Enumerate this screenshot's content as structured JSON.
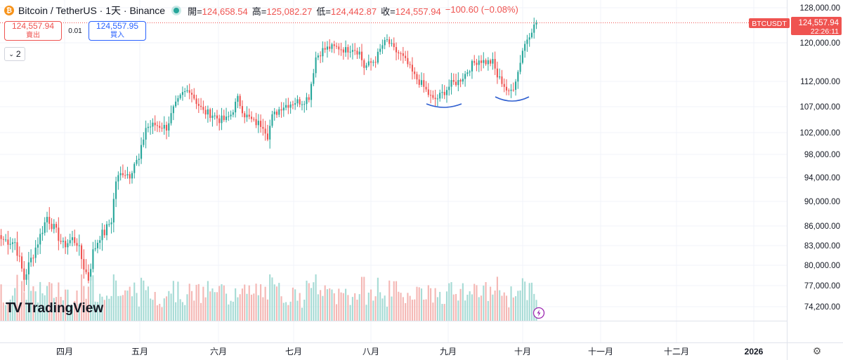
{
  "header": {
    "coin_symbol": "₿",
    "title": "Bitcoin / TetherUS · 1天 · Binance",
    "open_label": "開=",
    "open": "124,658.54",
    "high_label": "高=",
    "high": "125,082.27",
    "low_label": "低=",
    "low": "124,442.87",
    "close_label": "收=",
    "close": "124,557.94",
    "change": "−100.60 (−0.08%)"
  },
  "trade": {
    "sell_price": "124,557.94",
    "sell_label": "賣出",
    "spread": "0.01",
    "buy_price": "124,557.95",
    "buy_label": "買入"
  },
  "toggle_value": "2",
  "logo_text": "TradingView",
  "price_tag": {
    "symbol": "BTCUSDT",
    "price": "124,557.94",
    "countdown": "22:26:11"
  },
  "colors": {
    "up": "#26a69a",
    "down": "#ef5350",
    "vol_up": "#a6dbd5",
    "vol_down": "#f4b7b4",
    "accent_blue": "#2962ff",
    "annotation": "#2f5fd0"
  },
  "chart_data": {
    "type": "candlestick",
    "y_ticks": [
      128000,
      120000,
      112000,
      107000,
      102000,
      98000,
      94000,
      90000,
      86000,
      83000,
      80000,
      77000,
      74200
    ],
    "y_tick_labels": [
      "128,000.00",
      "120,000.00",
      "112,000.00",
      "107,000.00",
      "102,000.00",
      "98,000.00",
      "94,000.00",
      "90,000.00",
      "86,000.00",
      "83,000.00",
      "80,000.00",
      "77,000.00",
      "74,200.00"
    ],
    "x_labels": [
      "四月",
      "五月",
      "六月",
      "七月",
      "八月",
      "九月",
      "十月",
      "十一月",
      "十二月",
      "2026"
    ],
    "last_price": 124557.94,
    "series": [
      {
        "day": 0,
        "close": 84000
      },
      {
        "day": 6,
        "close": 83500
      },
      {
        "day": 10,
        "close": 78000
      },
      {
        "day": 12,
        "close": 80000
      },
      {
        "day": 17,
        "close": 84500
      },
      {
        "day": 20,
        "close": 87500
      },
      {
        "day": 24,
        "close": 85000
      },
      {
        "day": 27,
        "close": 83000
      },
      {
        "day": 31,
        "close": 84000
      },
      {
        "day": 33,
        "close": 83500
      },
      {
        "day": 36,
        "close": 79800
      },
      {
        "day": 38,
        "close": 78000
      },
      {
        "day": 40,
        "close": 82000
      },
      {
        "day": 43,
        "close": 84500
      },
      {
        "day": 45,
        "close": 85000
      },
      {
        "day": 48,
        "close": 87000
      },
      {
        "day": 50,
        "close": 93500
      },
      {
        "day": 53,
        "close": 95000
      },
      {
        "day": 56,
        "close": 94500
      },
      {
        "day": 58,
        "close": 96500
      },
      {
        "day": 60,
        "close": 97000
      },
      {
        "day": 63,
        "close": 103000
      },
      {
        "day": 67,
        "close": 103500
      },
      {
        "day": 72,
        "close": 103000
      },
      {
        "day": 75,
        "close": 106500
      },
      {
        "day": 79,
        "close": 109500
      },
      {
        "day": 82,
        "close": 110500
      },
      {
        "day": 85,
        "close": 108000
      },
      {
        "day": 88,
        "close": 106000
      },
      {
        "day": 92,
        "close": 105500
      },
      {
        "day": 95,
        "close": 104500
      },
      {
        "day": 98,
        "close": 104500
      },
      {
        "day": 100,
        "close": 105500
      },
      {
        "day": 103,
        "close": 108500
      },
      {
        "day": 106,
        "close": 105500
      },
      {
        "day": 110,
        "close": 104000
      },
      {
        "day": 114,
        "close": 103500
      },
      {
        "day": 116,
        "close": 101500
      },
      {
        "day": 118,
        "close": 105000
      },
      {
        "day": 122,
        "close": 107000
      },
      {
        "day": 125,
        "close": 107500
      },
      {
        "day": 128,
        "close": 108000
      },
      {
        "day": 131,
        "close": 108000
      },
      {
        "day": 134,
        "close": 109000
      },
      {
        "day": 137,
        "close": 117000
      },
      {
        "day": 140,
        "close": 118500
      },
      {
        "day": 143,
        "close": 119000
      },
      {
        "day": 147,
        "close": 119000
      },
      {
        "day": 150,
        "close": 118500
      },
      {
        "day": 153,
        "close": 119000
      },
      {
        "day": 156,
        "close": 118000
      },
      {
        "day": 158,
        "close": 115000
      },
      {
        "day": 160,
        "close": 115500
      },
      {
        "day": 163,
        "close": 116500
      },
      {
        "day": 166,
        "close": 119500
      },
      {
        "day": 168,
        "close": 120500
      },
      {
        "day": 171,
        "close": 118500
      },
      {
        "day": 174,
        "close": 117500
      },
      {
        "day": 177,
        "close": 115500
      },
      {
        "day": 180,
        "close": 113000
      },
      {
        "day": 183,
        "close": 111500
      },
      {
        "day": 186,
        "close": 109500
      },
      {
        "day": 188,
        "close": 108300
      },
      {
        "day": 190,
        "close": 108700
      },
      {
        "day": 193,
        "close": 110000
      },
      {
        "day": 196,
        "close": 111500
      },
      {
        "day": 199,
        "close": 112000
      },
      {
        "day": 202,
        "close": 113500
      },
      {
        "day": 205,
        "close": 115500
      },
      {
        "day": 208,
        "close": 116500
      },
      {
        "day": 211,
        "close": 116000
      },
      {
        "day": 214,
        "close": 116000
      },
      {
        "day": 216,
        "close": 113000
      },
      {
        "day": 218,
        "close": 112000
      },
      {
        "day": 221,
        "close": 109500
      },
      {
        "day": 223,
        "close": 111000
      },
      {
        "day": 225,
        "close": 114000
      },
      {
        "day": 227,
        "close": 118500
      },
      {
        "day": 229,
        "close": 121000
      },
      {
        "day": 231,
        "close": 123000
      },
      {
        "day": 233,
        "close": 124557.94
      }
    ]
  }
}
